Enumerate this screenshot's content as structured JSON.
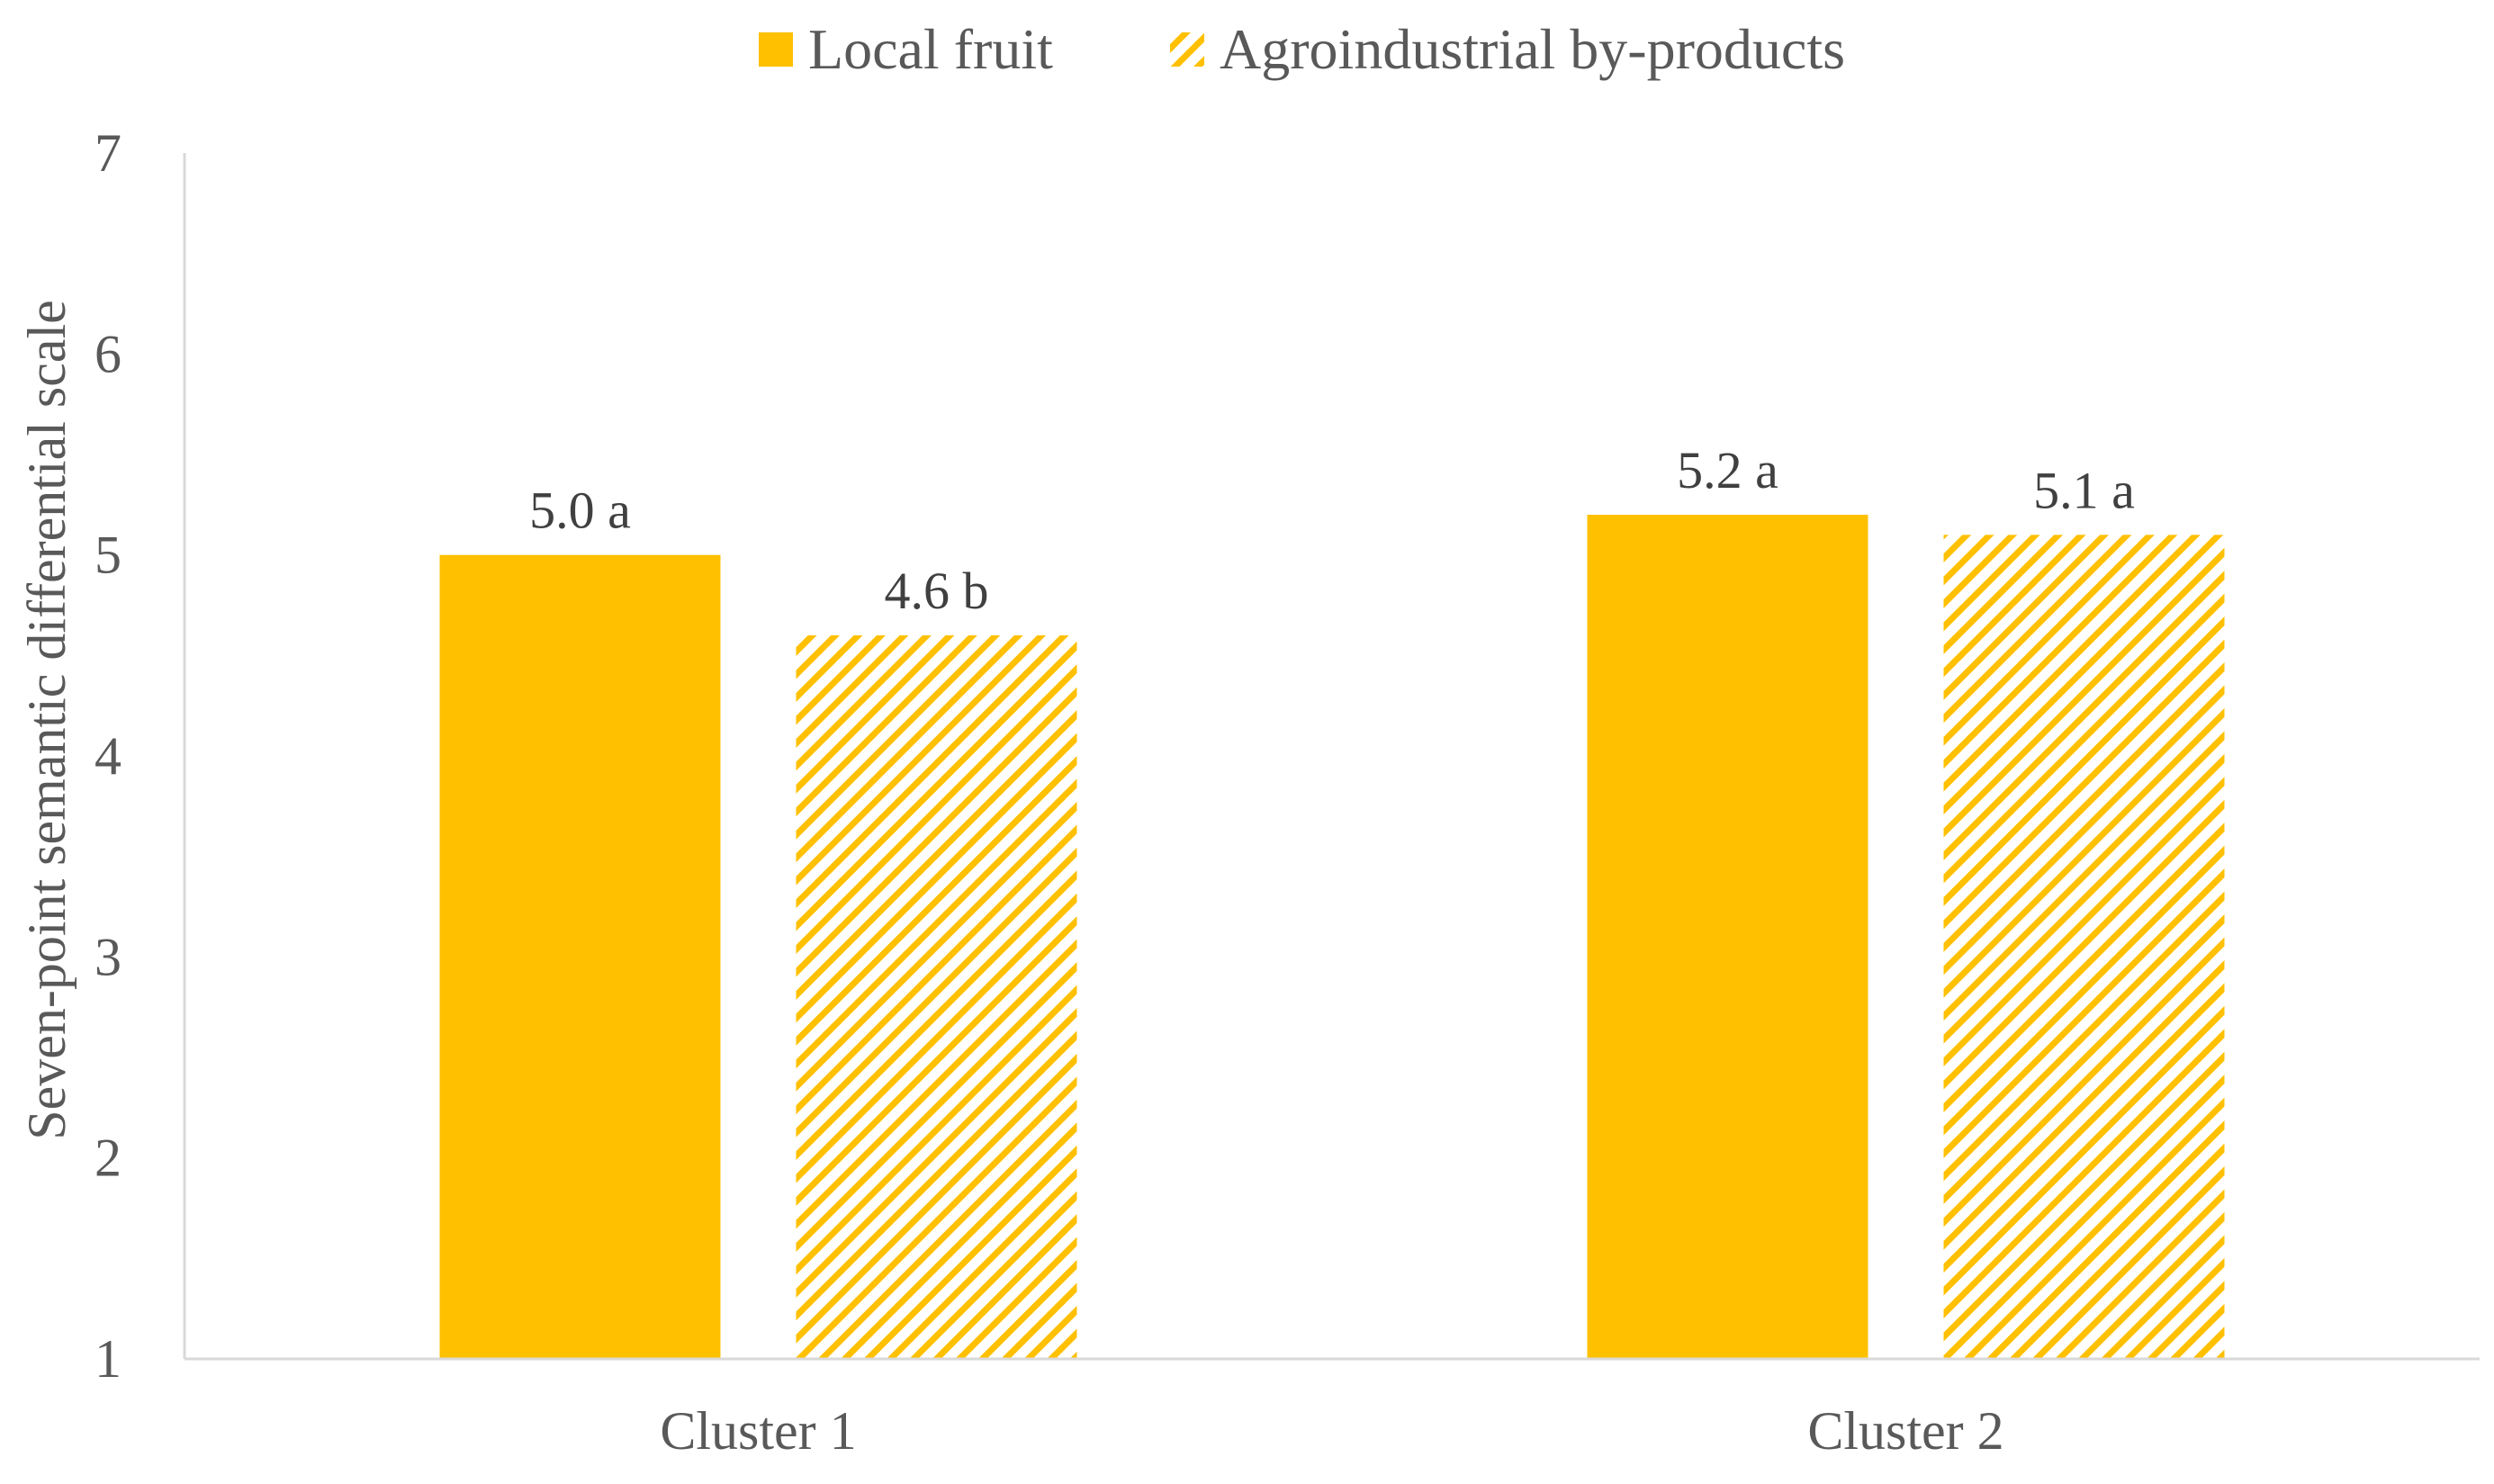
{
  "chart_data": {
    "type": "bar",
    "title": "",
    "xlabel": "",
    "ylabel": "Seven-point  semantic differential scale",
    "ylim": [
      1,
      7
    ],
    "yticks": [
      1,
      2,
      3,
      4,
      5,
      6,
      7
    ],
    "categories": [
      "Cluster 1",
      "Cluster 2"
    ],
    "series": [
      {
        "name": "Local fruit",
        "values": [
          5.0,
          5.2
        ],
        "labels": [
          "5.0 a",
          "5.2 a"
        ],
        "fill": "solid",
        "color": "#FFC000"
      },
      {
        "name": "Agroindustrial by-products",
        "values": [
          4.6,
          5.1
        ],
        "labels": [
          "4.6 b",
          "5.1 a"
        ],
        "fill": "diagonal-hatch",
        "color": "#FFC000"
      }
    ],
    "legend_position": "top",
    "grid": false
  }
}
